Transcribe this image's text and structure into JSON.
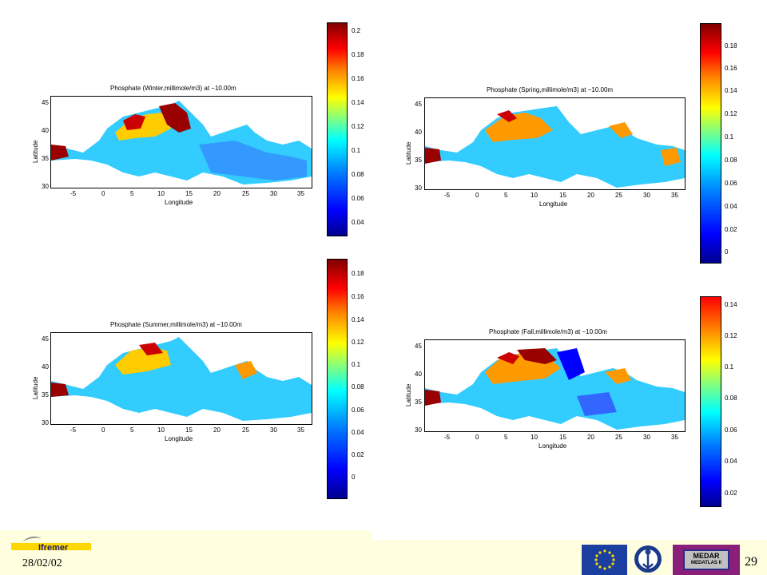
{
  "panels": [
    {
      "id": "winter",
      "title": "Phosphate (Winter,millimole/m3) at −10.00m",
      "xlabel": "Longitude",
      "ylabel": "Latitude",
      "xticks": [
        "-5",
        "0",
        "5",
        "10",
        "15",
        "20",
        "25",
        "30",
        "35"
      ],
      "yticks": [
        "45",
        "40",
        "35",
        "30"
      ],
      "cbar_ticks": [
        "0.2",
        "0.18",
        "0.16",
        "0.14",
        "0.12",
        "0.1",
        "0.08",
        "0.06",
        "0.04"
      ]
    },
    {
      "id": "spring",
      "title": "Phosphate (Spring,millimole/m3) at −10.00m",
      "xlabel": "Longitude",
      "ylabel": "Latitude",
      "xticks": [
        "-5",
        "0",
        "5",
        "10",
        "15",
        "20",
        "25",
        "30",
        "35"
      ],
      "yticks": [
        "45",
        "40",
        "35",
        "30"
      ],
      "cbar_ticks": [
        "0.18",
        "0.16",
        "0.14",
        "0.12",
        "0.1",
        "0.08",
        "0.06",
        "0.04",
        "0.02",
        "0"
      ]
    },
    {
      "id": "summer",
      "title": "Phosphate (Summer,millimole/m3) at −10.00m",
      "xlabel": "Longitude",
      "ylabel": "Latitude",
      "xticks": [
        "-5",
        "0",
        "5",
        "10",
        "15",
        "20",
        "25",
        "30",
        "35"
      ],
      "yticks": [
        "45",
        "40",
        "35",
        "30"
      ],
      "cbar_ticks": [
        "0.18",
        "0.16",
        "0.14",
        "0.12",
        "0.1",
        "0.08",
        "0.06",
        "0.04",
        "0.02",
        "0"
      ]
    },
    {
      "id": "fall",
      "title": "Phosphate (Fall,millimole/m3) at −10.00m",
      "xlabel": "Longitude",
      "ylabel": "Latitude",
      "xticks": [
        "-5",
        "0",
        "5",
        "10",
        "15",
        "20",
        "25",
        "30",
        "35"
      ],
      "yticks": [
        "45",
        "40",
        "35",
        "30"
      ],
      "cbar_ticks": [
        "0.14",
        "0.12",
        "0.1",
        "0.08",
        "0.06",
        "0.04",
        "0.02"
      ]
    }
  ],
  "footer": {
    "logo_text": "Ifremer",
    "date": "28/02/02",
    "page_number": "29",
    "medar_line1": "MEDAR",
    "medar_line2": "MEDATLAS II"
  },
  "colors": {
    "footer_bg": "#ffffe0",
    "logo_yellow": "#ffd700",
    "eu_blue": "#1b3fa0",
    "medar_purple": "#8a1f7a"
  }
}
